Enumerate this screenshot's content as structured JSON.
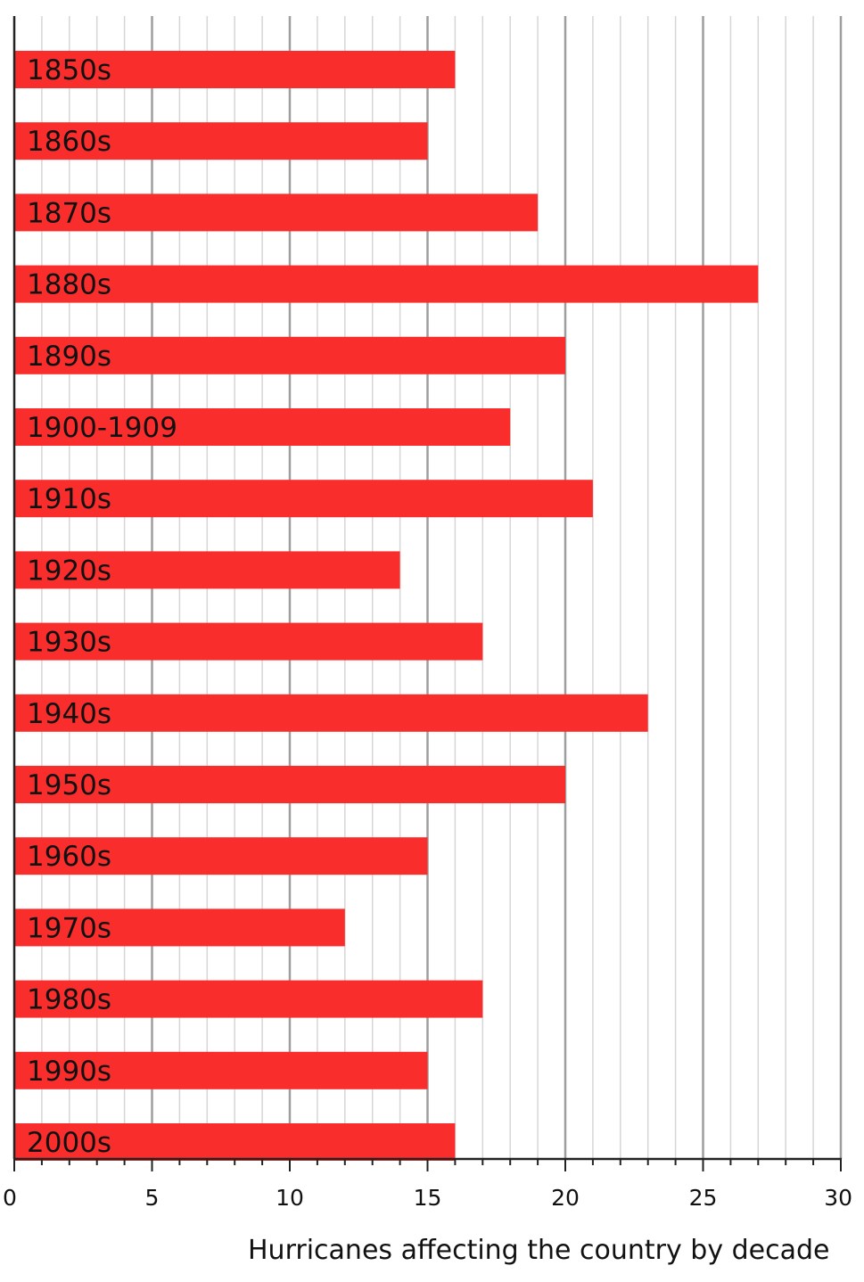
{
  "chart_data": {
    "type": "bar",
    "orientation": "horizontal",
    "categories": [
      "1850s",
      "1860s",
      "1870s",
      "1880s",
      "1890s",
      "1900-1909",
      "1910s",
      "1920s",
      "1930s",
      "1940s",
      "1950s",
      "1960s",
      "1970s",
      "1980s",
      "1990s",
      "2000s"
    ],
    "values": [
      16,
      15,
      19,
      27,
      20,
      18,
      21,
      14,
      17,
      23,
      20,
      15,
      12,
      17,
      15,
      16
    ],
    "xlabel": "Hurricanes affecting the country by decade",
    "ylabel": "",
    "xlim": [
      0,
      30
    ],
    "xticks": [
      0,
      5,
      10,
      15,
      20,
      25,
      30
    ],
    "minor_step": 1,
    "grid": true,
    "bar_color": "#fa2d2d"
  }
}
